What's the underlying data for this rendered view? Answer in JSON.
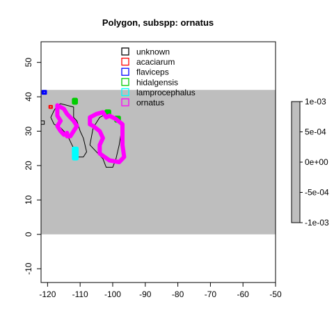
{
  "chart_data": {
    "type": "map",
    "title": "Polygon, subspp: ornatus",
    "xlim": [
      -122,
      -50
    ],
    "ylim": [
      -14,
      56
    ],
    "x_ticks": [
      -120,
      -110,
      -100,
      -90,
      -80,
      -70,
      -60,
      -50
    ],
    "y_ticks": [
      -10,
      0,
      10,
      20,
      30,
      40,
      50
    ],
    "background_raster": {
      "xmin": -122,
      "xmax": -50,
      "ymin": 0,
      "ymax": 42,
      "color": "#bebebe"
    },
    "legend": {
      "placement": "top-center",
      "entries": [
        {
          "name": "unknown",
          "color": "#000000"
        },
        {
          "name": "acaciarum",
          "color": "#ff0000"
        },
        {
          "name": "flaviceps",
          "color": "#0000ff"
        },
        {
          "name": "hidalgensis",
          "color": "#00cd00"
        },
        {
          "name": "lamprocephalus",
          "color": "#00ffff"
        },
        {
          "name": "ornatus",
          "color": "#ff00ff"
        }
      ]
    },
    "colorbar": {
      "labels": [
        "1e-03",
        "5e-04",
        "0e+00",
        "-5e-04",
        "-1e-03"
      ],
      "values": [
        0.001,
        0.0005,
        0,
        -0.0005,
        -0.001
      ],
      "color": "#bebebe"
    },
    "series": [
      {
        "name": "unknown",
        "color": "#000000",
        "width": 1,
        "points": [
          [
            -117,
            37.5
          ],
          [
            -116,
            38
          ],
          [
            -114,
            37.5
          ],
          [
            -112,
            37
          ],
          [
            -112,
            34
          ],
          [
            -111,
            33
          ],
          [
            -110,
            30
          ],
          [
            -109,
            28
          ],
          [
            -108,
            24
          ],
          [
            -109,
            22.5
          ],
          [
            -111,
            22.5
          ],
          [
            -112,
            25
          ],
          [
            -113,
            27
          ],
          [
            -114,
            29
          ],
          [
            -116,
            31
          ],
          [
            -118,
            32
          ],
          [
            -119,
            34
          ],
          [
            -118,
            36
          ],
          [
            -117,
            37.5
          ]
        ]
      },
      {
        "name": "unknown",
        "color": "#000000",
        "width": 1,
        "points": [
          [
            -107,
            26
          ],
          [
            -106,
            31
          ],
          [
            -104,
            34
          ],
          [
            -102,
            35
          ],
          [
            -99,
            34
          ],
          [
            -97,
            32
          ],
          [
            -98,
            26
          ],
          [
            -99,
            22
          ],
          [
            -100,
            19.5
          ],
          [
            -102,
            19.5
          ],
          [
            -103,
            22
          ],
          [
            -105,
            24
          ],
          [
            -107,
            26
          ]
        ]
      },
      {
        "name": "unknown",
        "color": "#000000",
        "width": 1,
        "points": [
          [
            -122,
            33
          ],
          [
            -121,
            33
          ],
          [
            -121,
            32
          ],
          [
            -122,
            32
          ],
          [
            -122,
            33
          ]
        ]
      },
      {
        "name": "acaciarum",
        "color": "#ff0000",
        "width": 2,
        "points": [
          [
            -119.5,
            37.4
          ],
          [
            -118.6,
            37.4
          ],
          [
            -118.6,
            36.7
          ],
          [
            -119.5,
            36.7
          ],
          [
            -119.5,
            37.4
          ]
        ]
      },
      {
        "name": "flaviceps",
        "color": "#0000ff",
        "width": 3,
        "points": [
          [
            -121.5,
            41.7
          ],
          [
            -120.5,
            41.7
          ],
          [
            -120.5,
            40.9
          ],
          [
            -121.5,
            40.9
          ],
          [
            -121.5,
            41.7
          ]
        ]
      },
      {
        "name": "hidalgensis",
        "color": "#00cd00",
        "width": 5,
        "points": [
          [
            -112,
            39.2
          ],
          [
            -111.2,
            39.2
          ],
          [
            -111.2,
            38.2
          ],
          [
            -112,
            38.2
          ],
          [
            -112,
            39.2
          ]
        ]
      },
      {
        "name": "hidalgensis",
        "color": "#00cd00",
        "width": 5,
        "points": [
          [
            -102,
            35.8
          ],
          [
            -101,
            35.8
          ],
          [
            -101,
            35
          ],
          [
            -102,
            35
          ],
          [
            -102,
            35.8
          ]
        ]
      },
      {
        "name": "hidalgensis",
        "color": "#00cd00",
        "width": 5,
        "points": [
          [
            -99,
            34
          ],
          [
            -98,
            34
          ],
          [
            -98,
            33
          ],
          [
            -99,
            33
          ],
          [
            -99,
            34
          ]
        ]
      },
      {
        "name": "lamprocephalus",
        "color": "#00ffff",
        "width": 5,
        "points": [
          [
            -112,
            25
          ],
          [
            -111,
            25
          ],
          [
            -111,
            22
          ],
          [
            -112,
            22
          ],
          [
            -112,
            25
          ]
        ]
      },
      {
        "name": "ornatus",
        "color": "#ff00ff",
        "width": 6,
        "points": [
          [
            -117,
            37.5
          ],
          [
            -115,
            36.5
          ],
          [
            -114,
            35
          ],
          [
            -112,
            33
          ],
          [
            -111,
            31.5
          ],
          [
            -112,
            30
          ],
          [
            -113,
            28.5
          ],
          [
            -114,
            28.5
          ],
          [
            -114,
            29.5
          ],
          [
            -115,
            29
          ],
          [
            -116,
            30
          ],
          [
            -117,
            31.5
          ],
          [
            -116,
            33
          ],
          [
            -117,
            34.5
          ],
          [
            -117,
            37.5
          ]
        ]
      },
      {
        "name": "ornatus",
        "color": "#ff00ff",
        "width": 6,
        "points": [
          [
            -105,
            35
          ],
          [
            -103,
            35.5
          ],
          [
            -102,
            34
          ],
          [
            -101,
            34.5
          ],
          [
            -99,
            33.5
          ],
          [
            -97,
            32
          ],
          [
            -97,
            26
          ],
          [
            -96.5,
            22.5
          ],
          [
            -98,
            21
          ],
          [
            -101,
            21.5
          ],
          [
            -102.5,
            22.5
          ],
          [
            -104,
            23.5
          ],
          [
            -104,
            26
          ],
          [
            -103,
            28
          ],
          [
            -104,
            30
          ],
          [
            -106,
            31.5
          ],
          [
            -107,
            32
          ],
          [
            -107,
            34
          ],
          [
            -105,
            35
          ]
        ]
      }
    ]
  }
}
